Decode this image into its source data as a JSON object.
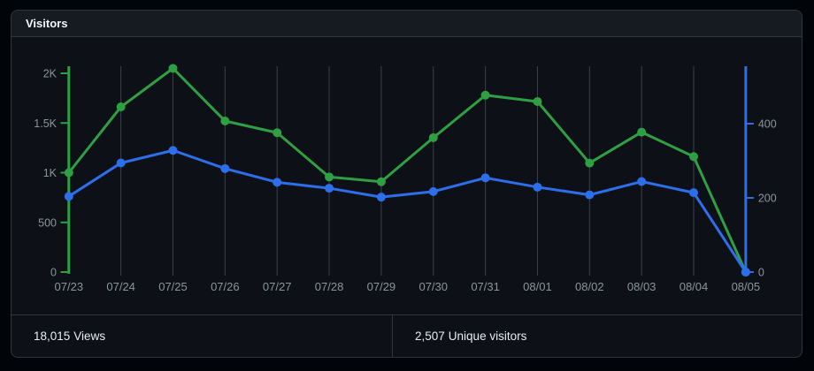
{
  "card": {
    "title": "Visitors",
    "footer": {
      "views": {
        "value": "18,015",
        "label": "Views"
      },
      "unique": {
        "value": "2,507",
        "label": "Unique visitors"
      }
    }
  },
  "colors": {
    "page_bg": "#010409",
    "card_bg": "#0d1117",
    "header_bg": "#161b22",
    "border": "#30363d",
    "gridline": "#3a404a",
    "axis_label": "#8b949e",
    "title_text": "#f0f6fc",
    "footer_text": "#e6edf3",
    "views_green": "#2ea043",
    "unique_blue": "#2d6eeb"
  },
  "chart_data": {
    "type": "line",
    "title": "Visitors",
    "x": [
      "07/23",
      "07/24",
      "07/25",
      "07/26",
      "07/27",
      "07/28",
      "07/29",
      "07/30",
      "07/31",
      "08/01",
      "08/02",
      "08/03",
      "08/04",
      "08/05"
    ],
    "series": [
      {
        "name": "Views",
        "axis": "left",
        "color": "#2ea043",
        "values": [
          1000,
          1662,
          2050,
          1520,
          1402,
          957,
          909,
          1352,
          1780,
          1716,
          1097,
          1408,
          1162,
          0
        ]
      },
      {
        "name": "Unique visitors",
        "axis": "right",
        "color": "#2d6eeb",
        "values": [
          204,
          294,
          328,
          279,
          242,
          226,
          202,
          217,
          254,
          229,
          208,
          244,
          214,
          0
        ]
      }
    ],
    "left_axis": {
      "ticks": [
        {
          "label": "0",
          "value": 0
        },
        {
          "label": "500",
          "value": 500
        },
        {
          "label": "1K",
          "value": 1000
        },
        {
          "label": "1.5K",
          "value": 1500
        },
        {
          "label": "2K",
          "value": 2000
        }
      ],
      "range": [
        0,
        2000
      ],
      "color": "#2ea043"
    },
    "right_axis": {
      "ticks": [
        {
          "label": "0",
          "value": 0
        },
        {
          "label": "200",
          "value": 200
        },
        {
          "label": "400",
          "value": 400
        }
      ],
      "range": [
        0,
        550
      ],
      "color": "#2d6eeb"
    },
    "grid": "vertical-only",
    "legend": "none"
  }
}
